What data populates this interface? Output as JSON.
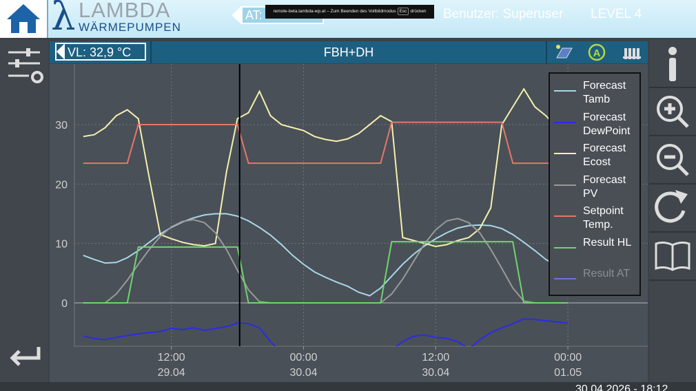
{
  "header": {
    "logo_symbol": "λ",
    "logo_brand": "LAMBDA",
    "logo_sub": "WÄRMEPUMPEN",
    "at_label": "AT:",
    "fullscreen_notice_pre": "remote-beta.lambda-wp.at – Zum Beenden des Vollbildmodus",
    "fullscreen_key": "Esc",
    "fullscreen_notice_post": "drücken",
    "user": "Benutzer: Superuser",
    "level": "LEVEL 4"
  },
  "toolbar": {
    "flow_temp": "VL: 32,9 °C",
    "circuit": "FBH+DH"
  },
  "footer": {
    "datetime": "30.04.2026 - 18:12"
  },
  "chart_data": {
    "type": "line",
    "legend": "upper right",
    "grid": true,
    "marker_x": 18.2,
    "xlim": [
      3.2,
      55.25
    ],
    "ylim": [
      -7.3,
      40.2
    ],
    "yticks": [
      0,
      10,
      20,
      30
    ],
    "xticks": [
      {
        "value": 12,
        "label": "12:00",
        "date": "29.04"
      },
      {
        "value": 24,
        "label": "00:00",
        "date": "30.04"
      },
      {
        "value": 36,
        "label": "12:00",
        "date": "30.04"
      },
      {
        "value": 48,
        "label": "00:00",
        "date": "01.05"
      }
    ],
    "x": [
      4,
      5,
      6,
      7,
      8,
      9,
      10,
      11,
      12,
      13,
      14,
      15,
      16,
      17,
      18,
      19,
      20,
      21,
      22,
      23,
      24,
      25,
      26,
      27,
      28,
      29,
      30,
      31,
      32,
      33,
      34,
      35,
      36,
      37,
      38,
      39,
      40,
      41,
      42,
      43,
      44,
      45,
      46,
      47,
      48
    ],
    "series": [
      {
        "name": "Forecast Tamb",
        "color": "#a8d8ea",
        "values": [
          8.0,
          7.3,
          6.7,
          6.8,
          7.6,
          8.8,
          10.2,
          11.6,
          12.7,
          13.6,
          14.3,
          14.8,
          15.0,
          15.0,
          14.6,
          13.8,
          12.7,
          11.4,
          9.8,
          8.0,
          6.5,
          5.2,
          4.3,
          3.5,
          2.8,
          1.8,
          1.2,
          2.5,
          4.5,
          6.5,
          8.2,
          9.6,
          10.8,
          11.8,
          12.6,
          13.0,
          13.1,
          13.0,
          12.5,
          11.5,
          10.2,
          8.8,
          7.3,
          6.2,
          5.8
        ]
      },
      {
        "name": "Forecast DewPoint",
        "color": "#2b2be6",
        "values": [
          -5.6,
          -6.0,
          -6.2,
          -5.8,
          -5.5,
          -5.2,
          -5.0,
          -4.8,
          -4.3,
          -4.5,
          -4.2,
          -4.6,
          -4.3,
          -4.0,
          -3.4,
          -3.5,
          -4.2,
          -6.5,
          -8.5,
          -9.5,
          -10,
          -10.5,
          -11,
          -11,
          -11,
          -10.5,
          -10,
          -9,
          -8,
          -6.5,
          -5.6,
          -5.4,
          -5.8,
          -6.0,
          -6.5,
          -7.8,
          -6.2,
          -5.0,
          -4.2,
          -3.5,
          -2.7,
          -2.8,
          -3.0,
          -3.2,
          -3.4
        ]
      },
      {
        "name": "Forecast Ecost",
        "color": "#f5f0b0",
        "values": [
          28.0,
          28.3,
          29.5,
          31.5,
          32.5,
          31.0,
          21.0,
          11.5,
          10.8,
          10.2,
          9.8,
          9.6,
          10.0,
          22.0,
          31.0,
          32.0,
          35.6,
          31.5,
          30.0,
          29.5,
          29.0,
          28.0,
          27.5,
          27.2,
          27.6,
          28.5,
          30.0,
          31.5,
          30.5,
          11.0,
          10.5,
          10.0,
          9.5,
          9.8,
          10.5,
          11.0,
          12.5,
          16.0,
          30.0,
          33.0,
          36.0,
          33.0,
          31.5,
          29.5,
          27.5
        ]
      },
      {
        "name": "Forecast PV",
        "color": "#9a9a9a",
        "values": [
          0,
          0,
          0,
          1.5,
          3.8,
          6.5,
          9.0,
          11.2,
          12.8,
          13.7,
          14.0,
          13.5,
          11.8,
          9.0,
          5.5,
          2.2,
          0.2,
          0,
          0,
          0,
          0,
          0,
          0,
          0,
          0,
          0,
          0,
          0,
          1.5,
          4.0,
          7.0,
          10.0,
          12.3,
          13.8,
          14.2,
          13.5,
          11.8,
          9.0,
          5.8,
          2.5,
          0.3,
          0,
          0,
          0,
          0
        ]
      },
      {
        "name": "Setpoint Temp.",
        "color": "#e8766a",
        "values": [
          23.5,
          23.5,
          23.5,
          23.5,
          23.5,
          30,
          30,
          30,
          30,
          30,
          30,
          30,
          30,
          30,
          30,
          23.5,
          23.5,
          23.5,
          23.5,
          23.5,
          23.5,
          23.5,
          23.5,
          23.5,
          23.5,
          23.5,
          23.5,
          23.5,
          30.4,
          30.4,
          30.4,
          30.4,
          30.4,
          30.4,
          30.4,
          30.4,
          30.4,
          30.4,
          30.4,
          23.5,
          23.5,
          23.5,
          23.5,
          23.5,
          23.5
        ]
      },
      {
        "name": "Result HL",
        "color": "#6ed66e",
        "values": [
          0,
          0,
          0,
          0,
          0,
          9.4,
          9.4,
          9.4,
          9.4,
          9.4,
          9.4,
          9.4,
          9.4,
          9.4,
          9.4,
          0,
          0,
          0,
          0,
          0,
          0,
          0,
          0,
          0,
          0,
          0,
          0,
          0,
          10.3,
          10.3,
          10.3,
          10.3,
          10.3,
          10.3,
          10.3,
          10.3,
          10.3,
          10.3,
          10.3,
          10.3,
          0,
          0,
          0,
          0,
          0
        ]
      },
      {
        "name": "Result AT",
        "color": "#7070e0",
        "visible": false
      }
    ]
  }
}
